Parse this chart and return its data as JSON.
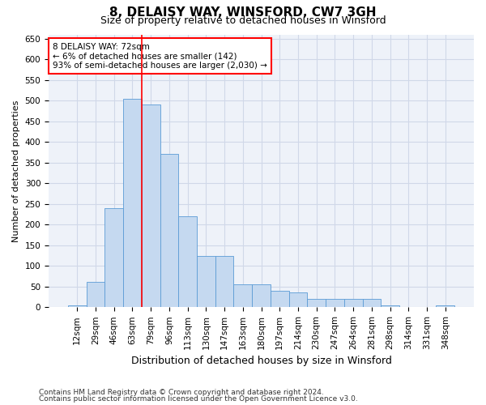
{
  "title1": "8, DELAISY WAY, WINSFORD, CW7 3GH",
  "title2": "Size of property relative to detached houses in Winsford",
  "xlabel": "Distribution of detached houses by size in Winsford",
  "ylabel": "Number of detached properties",
  "footnote1": "Contains HM Land Registry data © Crown copyright and database right 2024.",
  "footnote2": "Contains public sector information licensed under the Open Government Licence v3.0.",
  "annotation_title": "8 DELAISY WAY: 72sqm",
  "annotation_line1": "← 6% of detached houses are smaller (142)",
  "annotation_line2": "93% of semi-detached houses are larger (2,030) →",
  "bar_color": "#c5d9f0",
  "bar_edge_color": "#5b9bd5",
  "vline_color": "red",
  "vline_x": 3.5,
  "grid_color": "#d0d8e8",
  "bg_color": "#eef2f9",
  "categories": [
    "12sqm",
    "29sqm",
    "46sqm",
    "63sqm",
    "79sqm",
    "96sqm",
    "113sqm",
    "130sqm",
    "147sqm",
    "163sqm",
    "180sqm",
    "197sqm",
    "214sqm",
    "230sqm",
    "247sqm",
    "264sqm",
    "281sqm",
    "298sqm",
    "314sqm",
    "331sqm",
    "348sqm"
  ],
  "values": [
    5,
    62,
    240,
    505,
    490,
    370,
    220,
    125,
    125,
    55,
    55,
    40,
    35,
    20,
    20,
    20,
    20,
    5,
    0,
    0,
    5
  ],
  "ylim": [
    0,
    660
  ],
  "yticks": [
    0,
    50,
    100,
    150,
    200,
    250,
    300,
    350,
    400,
    450,
    500,
    550,
    600,
    650
  ],
  "title1_fontsize": 11,
  "title2_fontsize": 9,
  "tick_fontsize": 7.5,
  "ylabel_fontsize": 8,
  "xlabel_fontsize": 9,
  "footnote_fontsize": 6.5,
  "ann_fontsize": 7.5
}
